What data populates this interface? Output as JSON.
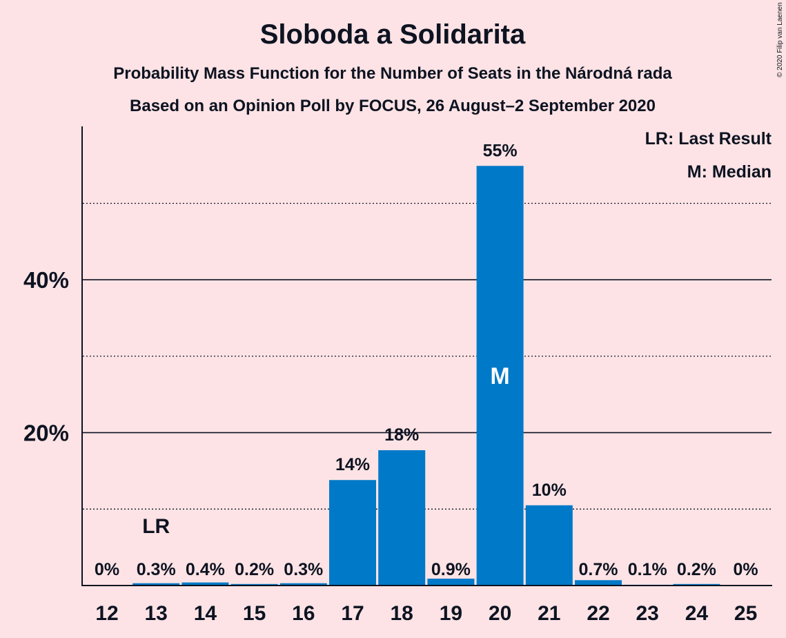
{
  "chart_data": {
    "type": "bar",
    "title": "Sloboda a Solidarita",
    "subtitle_1": "Probability Mass Function for the Number of Seats in the Národná rada",
    "subtitle_2": "Based on an Opinion Poll by FOCUS, 26 August–2 September 2020",
    "categories": [
      "12",
      "13",
      "14",
      "15",
      "16",
      "17",
      "18",
      "19",
      "20",
      "21",
      "22",
      "23",
      "24",
      "25"
    ],
    "values": [
      0,
      0.3,
      0.4,
      0.2,
      0.3,
      13.8,
      17.7,
      0.9,
      54.9,
      10.5,
      0.7,
      0.1,
      0.2,
      0
    ],
    "data_labels": [
      "0%",
      "0.3%",
      "0.4%",
      "0.2%",
      "0.3%",
      "14%",
      "18%",
      "0.9%",
      "55%",
      "10%",
      "0.7%",
      "0.1%",
      "0.2%",
      "0%"
    ],
    "y_tick_labels": [
      {
        "value": 20,
        "label": "20%"
      },
      {
        "value": 40,
        "label": "40%"
      }
    ],
    "ylim": [
      0,
      60
    ],
    "grid_solid": [
      20,
      40
    ],
    "grid_dotted": [
      10,
      30,
      50
    ],
    "last_result": {
      "category": "13",
      "label": "LR"
    },
    "median": {
      "category": "20",
      "label": "M"
    },
    "legend": [
      "LR: Last Result",
      "M: Median"
    ],
    "legend_position": "top-right",
    "bar_color": "#0079c8",
    "background_color": "#fde3e5",
    "copyright": "© 2020 Filip van Laenen"
  }
}
